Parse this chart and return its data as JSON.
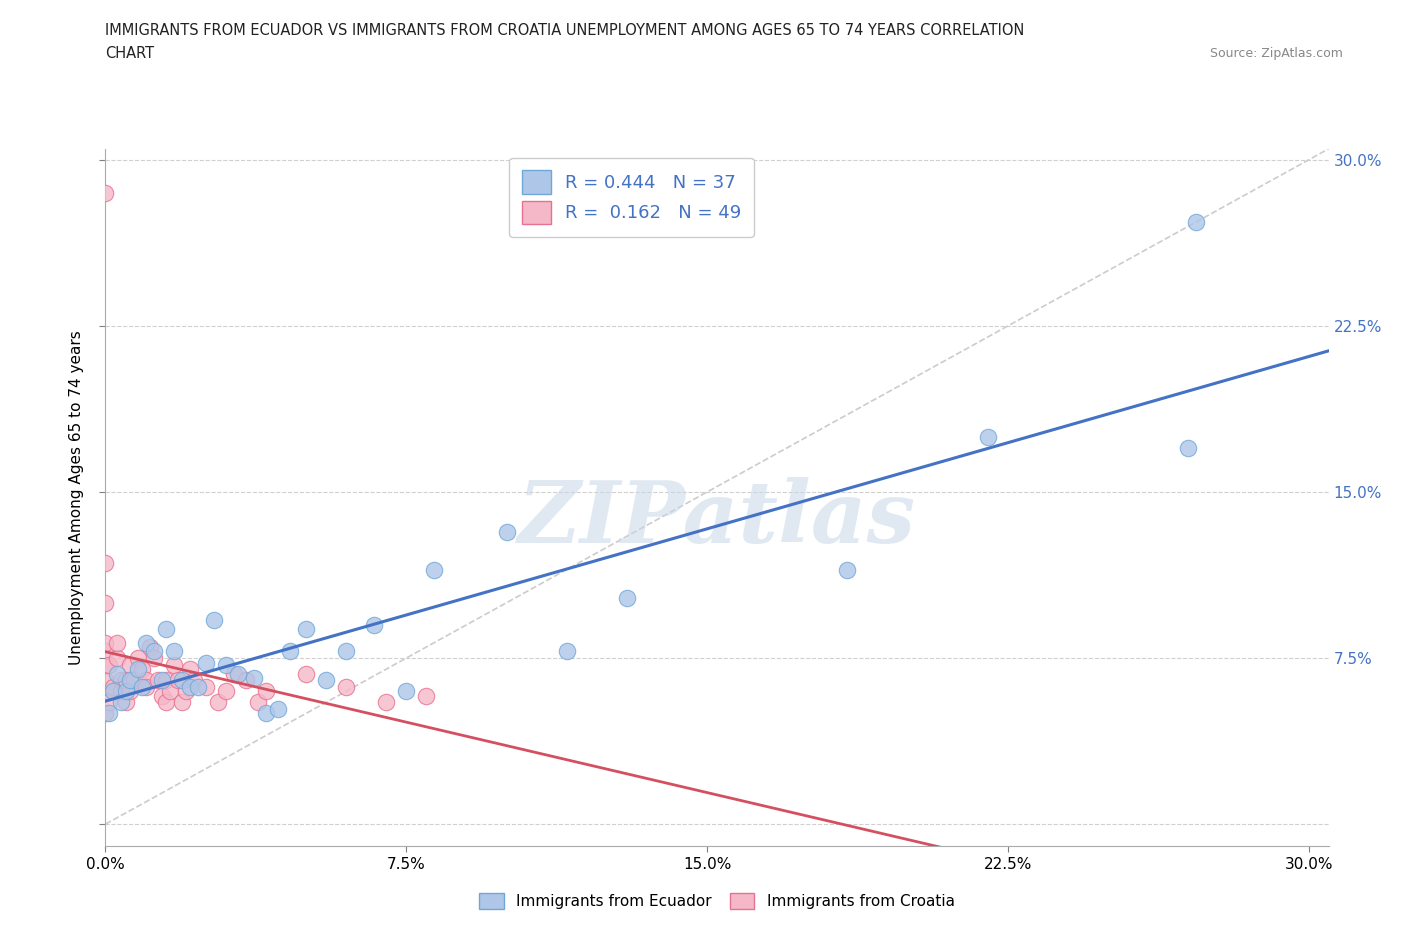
{
  "title_line1": "IMMIGRANTS FROM ECUADOR VS IMMIGRANTS FROM CROATIA UNEMPLOYMENT AMONG AGES 65 TO 74 YEARS CORRELATION",
  "title_line2": "CHART",
  "source_text": "Source: ZipAtlas.com",
  "ylabel": "Unemployment Among Ages 65 to 74 years",
  "xlim": [
    0.0,
    0.305
  ],
  "ylim": [
    -0.01,
    0.305
  ],
  "xticks": [
    0.0,
    0.075,
    0.15,
    0.225,
    0.3
  ],
  "yticks": [
    0.0,
    0.075,
    0.15,
    0.225,
    0.3
  ],
  "xticklabels": [
    "0.0%",
    "7.5%",
    "15.0%",
    "22.5%",
    "30.0%"
  ],
  "yticklabels_right": [
    "",
    "7.5%",
    "15.0%",
    "22.5%",
    "30.0%"
  ],
  "ecuador_fill": "#aec6e8",
  "ecuador_edge": "#6fa8d8",
  "croatia_fill": "#f5b8c8",
  "croatia_edge": "#e87090",
  "ecuador_R": 0.444,
  "ecuador_N": 37,
  "croatia_R": 0.162,
  "croatia_N": 49,
  "ecuador_line_color": "#4472c4",
  "croatia_line_color": "#d45060",
  "right_tick_color": "#4472c4",
  "legend_label_ecuador": "Immigrants from Ecuador",
  "legend_label_croatia": "Immigrants from Croatia",
  "ecuador_x": [
    0.001,
    0.002,
    0.003,
    0.004,
    0.005,
    0.006,
    0.008,
    0.009,
    0.01,
    0.012,
    0.014,
    0.015,
    0.017,
    0.019,
    0.021,
    0.023,
    0.025,
    0.027,
    0.03,
    0.033,
    0.037,
    0.04,
    0.043,
    0.046,
    0.05,
    0.055,
    0.06,
    0.067,
    0.075,
    0.082,
    0.1,
    0.115,
    0.13,
    0.185,
    0.22,
    0.27,
    0.272
  ],
  "ecuador_y": [
    0.05,
    0.06,
    0.068,
    0.055,
    0.06,
    0.065,
    0.07,
    0.062,
    0.082,
    0.078,
    0.065,
    0.088,
    0.078,
    0.065,
    0.062,
    0.062,
    0.073,
    0.092,
    0.072,
    0.068,
    0.066,
    0.05,
    0.052,
    0.078,
    0.088,
    0.065,
    0.078,
    0.09,
    0.06,
    0.115,
    0.132,
    0.078,
    0.102,
    0.115,
    0.175,
    0.17,
    0.272
  ],
  "croatia_x": [
    0.0,
    0.0,
    0.0,
    0.0,
    0.0,
    0.0,
    0.0,
    0.0,
    0.0,
    0.001,
    0.001,
    0.002,
    0.003,
    0.003,
    0.004,
    0.004,
    0.005,
    0.005,
    0.006,
    0.006,
    0.007,
    0.008,
    0.009,
    0.01,
    0.01,
    0.011,
    0.012,
    0.013,
    0.014,
    0.015,
    0.015,
    0.016,
    0.017,
    0.018,
    0.019,
    0.02,
    0.021,
    0.022,
    0.025,
    0.028,
    0.03,
    0.032,
    0.035,
    0.038,
    0.04,
    0.05,
    0.06,
    0.07,
    0.08
  ],
  "croatia_y": [
    0.05,
    0.06,
    0.065,
    0.072,
    0.078,
    0.082,
    0.1,
    0.118,
    0.285,
    0.055,
    0.072,
    0.062,
    0.075,
    0.082,
    0.06,
    0.065,
    0.055,
    0.065,
    0.06,
    0.072,
    0.065,
    0.075,
    0.07,
    0.065,
    0.062,
    0.08,
    0.075,
    0.065,
    0.058,
    0.055,
    0.065,
    0.06,
    0.072,
    0.065,
    0.055,
    0.06,
    0.07,
    0.065,
    0.062,
    0.055,
    0.06,
    0.068,
    0.065,
    0.055,
    0.06,
    0.068,
    0.062,
    0.055,
    0.058
  ]
}
